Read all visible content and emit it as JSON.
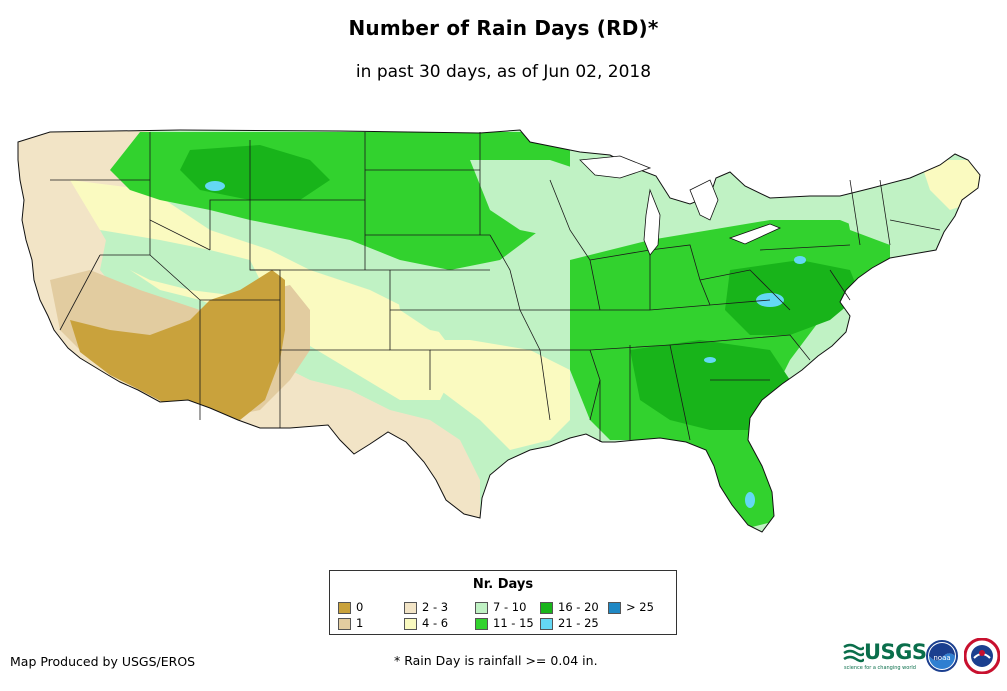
{
  "header": {
    "title": "Number of Rain Days (RD)*",
    "subtitle": "in past 30 days, as of Jun 02, 2018"
  },
  "map": {
    "region": "Contiguous United States",
    "colors": {
      "0": "#c9a23c",
      "1": "#e2cca0",
      "2-3": "#f2e4c6",
      "4-6": "#fafac0",
      "7-10": "#c0f2c4",
      "11-15": "#32d22e",
      "16-20": "#18b41a",
      "21-25": "#64d8f4",
      ">25": "#1f88c4"
    }
  },
  "legend": {
    "title": "Nr. Days",
    "items": [
      {
        "label": "0",
        "color": "#c9a23c"
      },
      {
        "label": "1",
        "color": "#e2cca0"
      },
      {
        "label": "2 - 3",
        "color": "#f2e4c6"
      },
      {
        "label": "4 - 6",
        "color": "#fafac0"
      },
      {
        "label": "7 - 10",
        "color": "#c0f2c4"
      },
      {
        "label": "11 - 15",
        "color": "#32d22e"
      },
      {
        "label": "16 - 20",
        "color": "#18b41a"
      },
      {
        "label": "21 - 25",
        "color": "#64d8f4"
      },
      {
        "label": "> 25",
        "color": "#1f88c4"
      }
    ]
  },
  "footer": {
    "credit": "Map Produced by USGS/EROS",
    "footnote": "* Rain Day is rainfall >= 0.04 in.",
    "logo_usgs": "USGS",
    "logo_usgs_tagline": "science for a changing world",
    "logo_noaa": "noaa"
  }
}
